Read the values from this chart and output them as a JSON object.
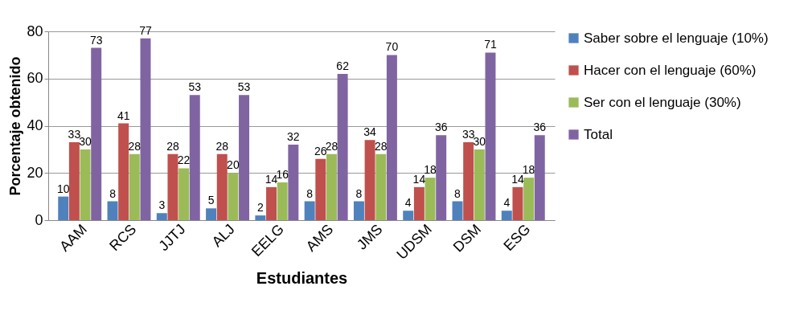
{
  "chart_data": {
    "type": "bar",
    "xlabel": "Estudiantes",
    "ylabel": "Porcentaje obtenido",
    "categories": [
      "AAM",
      "RCS",
      "JJTJ",
      "ALJ",
      "EELG",
      "AMS",
      "JMS",
      "UDSM",
      "DSM",
      "ESG"
    ],
    "series": [
      {
        "name": "Saber sobre el lenguaje (10%)",
        "color": "#4f81bd",
        "values": [
          10,
          8,
          3,
          5,
          2,
          8,
          8,
          4,
          8,
          4
        ]
      },
      {
        "name": "Hacer con el lenguaje (60%)",
        "color": "#c0504d",
        "values": [
          33,
          41,
          28,
          28,
          14,
          26,
          34,
          14,
          33,
          14
        ]
      },
      {
        "name": "Ser con el lenguaje (30%)",
        "color": "#9bbb59",
        "values": [
          30,
          28,
          22,
          20,
          16,
          28,
          28,
          18,
          30,
          18
        ]
      },
      {
        "name": "Total",
        "color": "#8064a2",
        "values": [
          73,
          77,
          53,
          53,
          32,
          62,
          70,
          36,
          71,
          36
        ]
      }
    ],
    "ylim": [
      0,
      80
    ],
    "yticks": [
      0,
      20,
      40,
      60,
      80
    ],
    "grid": "y",
    "legend": "right",
    "data_labels": true
  }
}
